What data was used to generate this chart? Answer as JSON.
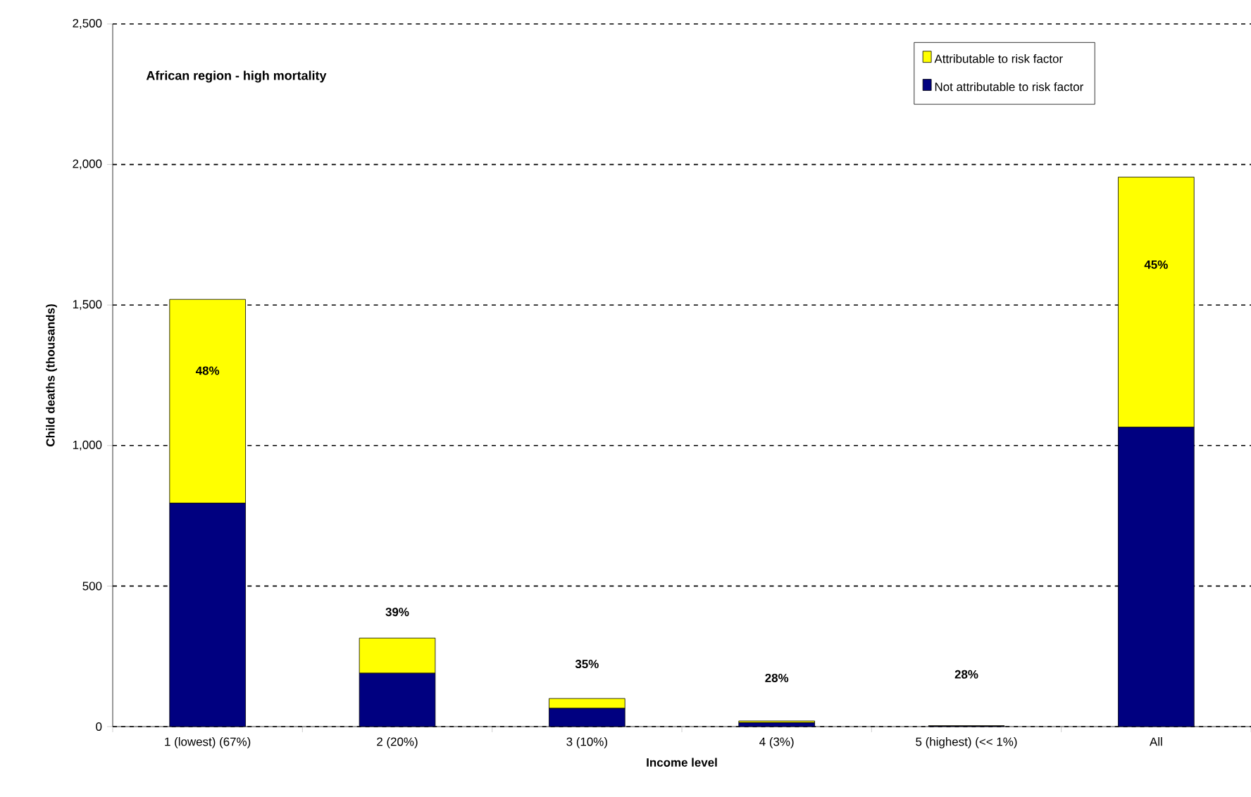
{
  "chart_data": {
    "type": "bar",
    "stacked": true,
    "title": "African region - high mortality",
    "xlabel": "Income level",
    "ylabel": "Child deaths (thousands)",
    "categories": [
      "1 (lowest) (67%)",
      "2 (20%)",
      "3 (10%)",
      "4 (3%)",
      "5 (highest) (<< 1%)",
      "All"
    ],
    "series": [
      {
        "name": "Not attributable to risk factor",
        "color": "#000080",
        "values": [
          795,
          190,
          65,
          14,
          2,
          1065
        ]
      },
      {
        "name": "Attributable to risk factor",
        "color": "#ffff00",
        "values": [
          725,
          125,
          35,
          6,
          1,
          890
        ]
      }
    ],
    "annotations": [
      "48%",
      "39%",
      "35%",
      "28%",
      "28%",
      "45%"
    ],
    "ylim": [
      0,
      2500
    ],
    "yticks": [
      {
        "value": 0,
        "label": "0"
      },
      {
        "value": 500,
        "label": "500"
      },
      {
        "value": 1000,
        "label": "1,000"
      },
      {
        "value": 1500,
        "label": "1,500"
      },
      {
        "value": 2000,
        "label": "2,000"
      },
      {
        "value": 2500,
        "label": "2,500"
      }
    ],
    "grid": "y",
    "legend": "top right"
  }
}
